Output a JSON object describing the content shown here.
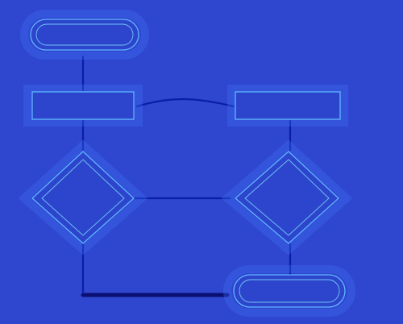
{
  "nodes": {
    "start": {
      "label": ""
    },
    "process_left": {
      "label": ""
    },
    "process_right": {
      "label": ""
    },
    "decision_left": {
      "label": ""
    },
    "decision_right": {
      "label": ""
    },
    "end": {
      "label": ""
    }
  },
  "edges": {
    "process_to_process": {
      "label": ""
    },
    "decision_to_decision": {
      "label": ""
    }
  },
  "colors": {
    "background": "#2f47cf",
    "edge": "#0a1da6",
    "node_border": "#5fb6ff",
    "glow": "#7fe5ff",
    "text": "#b9ffe1"
  }
}
